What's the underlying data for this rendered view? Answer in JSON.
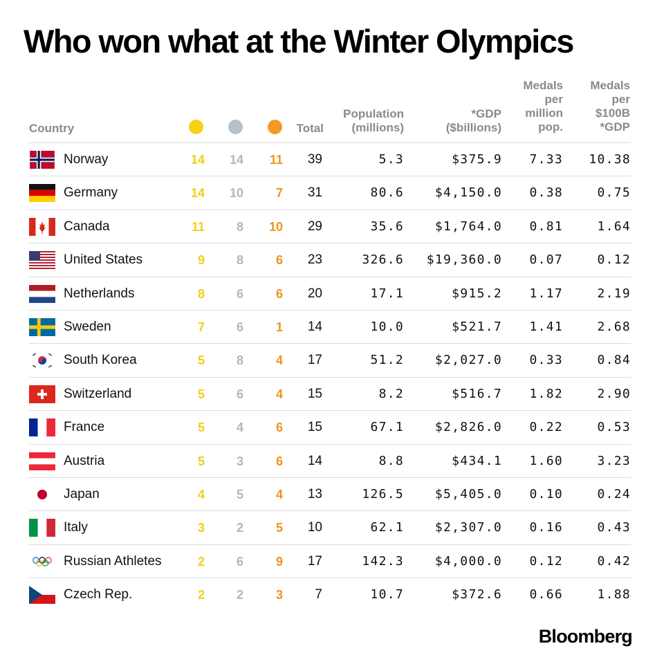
{
  "title": "Who won what at the Winter Olympics",
  "headers": {
    "country": "Country",
    "total": "Total",
    "population": [
      "Population",
      "(millions)"
    ],
    "gdp": [
      "*GDP",
      "($billions)"
    ],
    "per_million": [
      "Medals",
      "per",
      "million",
      "pop."
    ],
    "per_gdp": [
      "Medals",
      "per",
      "$100B",
      "*GDP"
    ]
  },
  "medal_icons": [
    "gold-medal-dot",
    "silver-medal-dot",
    "bronze-medal-dot"
  ],
  "colors": {
    "gold": "#f2cf17",
    "silver": "#aeb8bf",
    "bronze": "#f1931d",
    "header": "#8a8a8a",
    "rule": "#dcdcdc"
  },
  "source": "Bloomberg",
  "chart_data": {
    "type": "table",
    "title": "Who won what at the Winter Olympics",
    "columns": [
      "Country",
      "Gold",
      "Silver",
      "Bronze",
      "Total",
      "Population (millions)",
      "*GDP ($billions)",
      "Medals per million pop.",
      "Medals per $100B *GDP"
    ],
    "rows": [
      {
        "country": "Norway",
        "flag": "norway-flag",
        "gold": "14",
        "silver": "14",
        "bronze": "11",
        "total": "39",
        "population": "5.3",
        "gdp": "$375.9",
        "per_million": "7.33",
        "per_gdp": "10.38"
      },
      {
        "country": "Germany",
        "flag": "germany-flag",
        "gold": "14",
        "silver": "10",
        "bronze": "7",
        "total": "31",
        "population": "80.6",
        "gdp": "$4,150.0",
        "per_million": "0.38",
        "per_gdp": "0.75"
      },
      {
        "country": "Canada",
        "flag": "canada-flag",
        "gold": "11",
        "silver": "8",
        "bronze": "10",
        "total": "29",
        "population": "35.6",
        "gdp": "$1,764.0",
        "per_million": "0.81",
        "per_gdp": "1.64"
      },
      {
        "country": "United States",
        "flag": "united-states-flag",
        "gold": "9",
        "silver": "8",
        "bronze": "6",
        "total": "23",
        "population": "326.6",
        "gdp": "$19,360.0",
        "per_million": "0.07",
        "per_gdp": "0.12"
      },
      {
        "country": "Netherlands",
        "flag": "netherlands-flag",
        "gold": "8",
        "silver": "6",
        "bronze": "6",
        "total": "20",
        "population": "17.1",
        "gdp": "$915.2",
        "per_million": "1.17",
        "per_gdp": "2.19"
      },
      {
        "country": "Sweden",
        "flag": "sweden-flag",
        "gold": "7",
        "silver": "6",
        "bronze": "1",
        "total": "14",
        "population": "10.0",
        "gdp": "$521.7",
        "per_million": "1.41",
        "per_gdp": "2.68"
      },
      {
        "country": "South Korea",
        "flag": "south-korea-flag",
        "gold": "5",
        "silver": "8",
        "bronze": "4",
        "total": "17",
        "population": "51.2",
        "gdp": "$2,027.0",
        "per_million": "0.33",
        "per_gdp": "0.84"
      },
      {
        "country": "Switzerland",
        "flag": "switzerland-flag",
        "gold": "5",
        "silver": "6",
        "bronze": "4",
        "total": "15",
        "population": "8.2",
        "gdp": "$516.7",
        "per_million": "1.82",
        "per_gdp": "2.90"
      },
      {
        "country": "France",
        "flag": "france-flag",
        "gold": "5",
        "silver": "4",
        "bronze": "6",
        "total": "15",
        "population": "67.1",
        "gdp": "$2,826.0",
        "per_million": "0.22",
        "per_gdp": "0.53"
      },
      {
        "country": "Austria",
        "flag": "austria-flag",
        "gold": "5",
        "silver": "3",
        "bronze": "6",
        "total": "14",
        "population": "8.8",
        "gdp": "$434.1",
        "per_million": "1.60",
        "per_gdp": "3.23"
      },
      {
        "country": "Japan",
        "flag": "japan-flag",
        "gold": "4",
        "silver": "5",
        "bronze": "4",
        "total": "13",
        "population": "126.5",
        "gdp": "$5,405.0",
        "per_million": "0.10",
        "per_gdp": "0.24"
      },
      {
        "country": "Italy",
        "flag": "italy-flag",
        "gold": "3",
        "silver": "2",
        "bronze": "5",
        "total": "10",
        "population": "62.1",
        "gdp": "$2,307.0",
        "per_million": "0.16",
        "per_gdp": "0.43"
      },
      {
        "country": "Russian Athletes",
        "flag": "olympic-rings-flag",
        "gold": "2",
        "silver": "6",
        "bronze": "9",
        "total": "17",
        "population": "142.3",
        "gdp": "$4,000.0",
        "per_million": "0.12",
        "per_gdp": "0.42"
      },
      {
        "country": "Czech Rep.",
        "flag": "czech-republic-flag",
        "gold": "2",
        "silver": "2",
        "bronze": "3",
        "total": "7",
        "population": "10.7",
        "gdp": "$372.6",
        "per_million": "0.66",
        "per_gdp": "1.88"
      }
    ]
  }
}
